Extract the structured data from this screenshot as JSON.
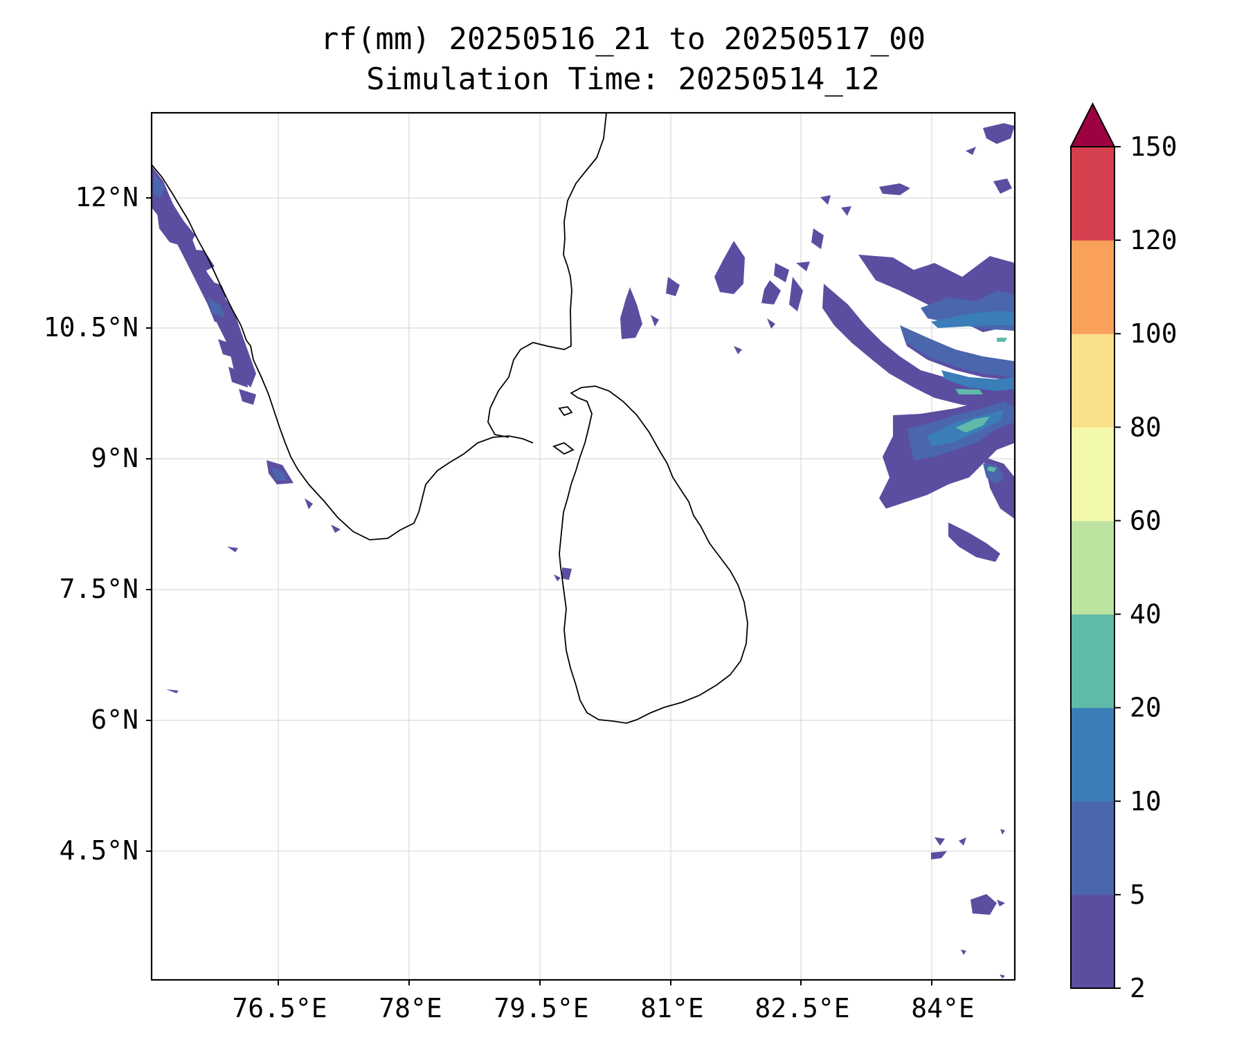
{
  "title": {
    "line1": "rf(mm) 20250516_21 to 20250517_00",
    "line2": "Simulation Time: 20250514_12"
  },
  "map": {
    "lon_ticks": [
      "76.5°E",
      "78°E",
      "79.5°E",
      "81°E",
      "82.5°E",
      "84°E"
    ],
    "lat_ticks": [
      "12°N",
      "10.5°N",
      "9°N",
      "7.5°N",
      "6°N",
      "4.5°N"
    ],
    "gridlines": true
  },
  "colorbar": {
    "levels": [
      "2",
      "5",
      "10",
      "20",
      "40",
      "60",
      "80",
      "100",
      "120",
      "150"
    ],
    "colors": [
      "#5b4ea0",
      "#4a66ad",
      "#3a7db9",
      "#5fbaa9",
      "#bde3a0",
      "#f3f9ab",
      "#fbe08c",
      "#f9a15b",
      "#d4404e",
      "#9e0142"
    ],
    "extend": "max"
  }
}
